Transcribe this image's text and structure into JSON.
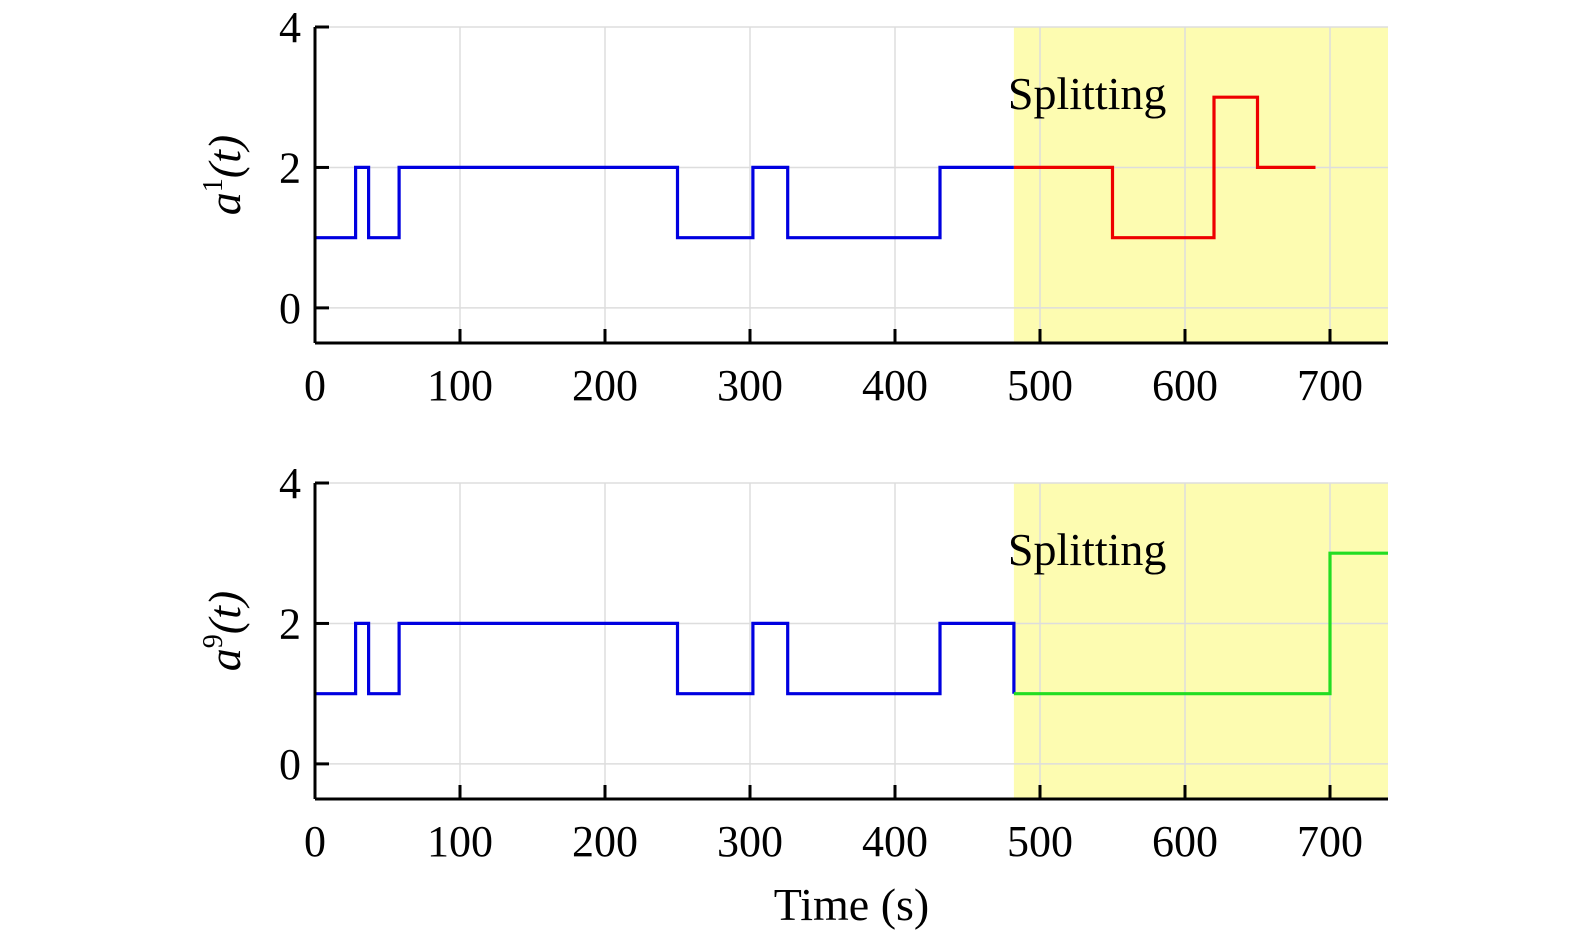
{
  "chart_data": [
    {
      "type": "line",
      "step": true,
      "xlim": [
        0,
        740
      ],
      "ylim": [
        -0.5,
        4
      ],
      "xticks": [
        0,
        100,
        200,
        300,
        400,
        500,
        600,
        700
      ],
      "yticks": [
        0,
        2,
        4
      ],
      "grid": true,
      "ylabel": {
        "base": "a",
        "sup": "1",
        "arg": "(t)"
      },
      "xlabel": "",
      "highlight": {
        "x_start": 482,
        "x_end": 740,
        "color": "#fdfcb1",
        "label": "Splitting"
      },
      "series": [
        {
          "color": "#0000e0",
          "points": [
            [
              0,
              1
            ],
            [
              28,
              1
            ],
            [
              28,
              2
            ],
            [
              37,
              2
            ],
            [
              37,
              1
            ],
            [
              58,
              1
            ],
            [
              58,
              2
            ],
            [
              250,
              2
            ],
            [
              250,
              1
            ],
            [
              302,
              1
            ],
            [
              302,
              2
            ],
            [
              326,
              2
            ],
            [
              326,
              1
            ],
            [
              431,
              1
            ],
            [
              431,
              2
            ],
            [
              482,
              2
            ]
          ]
        },
        {
          "color": "#ee0000",
          "points": [
            [
              482,
              2
            ],
            [
              550,
              2
            ],
            [
              550,
              1
            ],
            [
              620,
              1
            ],
            [
              620,
              3
            ],
            [
              650,
              3
            ],
            [
              650,
              2
            ],
            [
              690,
              2
            ]
          ]
        }
      ]
    },
    {
      "type": "line",
      "step": true,
      "xlim": [
        0,
        740
      ],
      "ylim": [
        -0.5,
        4
      ],
      "xticks": [
        0,
        100,
        200,
        300,
        400,
        500,
        600,
        700
      ],
      "yticks": [
        0,
        2,
        4
      ],
      "grid": true,
      "ylabel": {
        "base": "a",
        "sup": "9",
        "arg": "(t)"
      },
      "xlabel": "Time (s)",
      "highlight": {
        "x_start": 482,
        "x_end": 740,
        "color": "#fdfcb1",
        "label": "Splitting"
      },
      "series": [
        {
          "color": "#0000e0",
          "points": [
            [
              0,
              1
            ],
            [
              28,
              1
            ],
            [
              28,
              2
            ],
            [
              37,
              2
            ],
            [
              37,
              1
            ],
            [
              58,
              1
            ],
            [
              58,
              2
            ],
            [
              250,
              2
            ],
            [
              250,
              1
            ],
            [
              302,
              1
            ],
            [
              302,
              2
            ],
            [
              326,
              2
            ],
            [
              326,
              1
            ],
            [
              431,
              1
            ],
            [
              431,
              2
            ],
            [
              482,
              2
            ],
            [
              482,
              1
            ]
          ]
        },
        {
          "color": "#22dd22",
          "points": [
            [
              482,
              1
            ],
            [
              700,
              1
            ],
            [
              700,
              3
            ],
            [
              740,
              3
            ]
          ]
        }
      ]
    }
  ]
}
